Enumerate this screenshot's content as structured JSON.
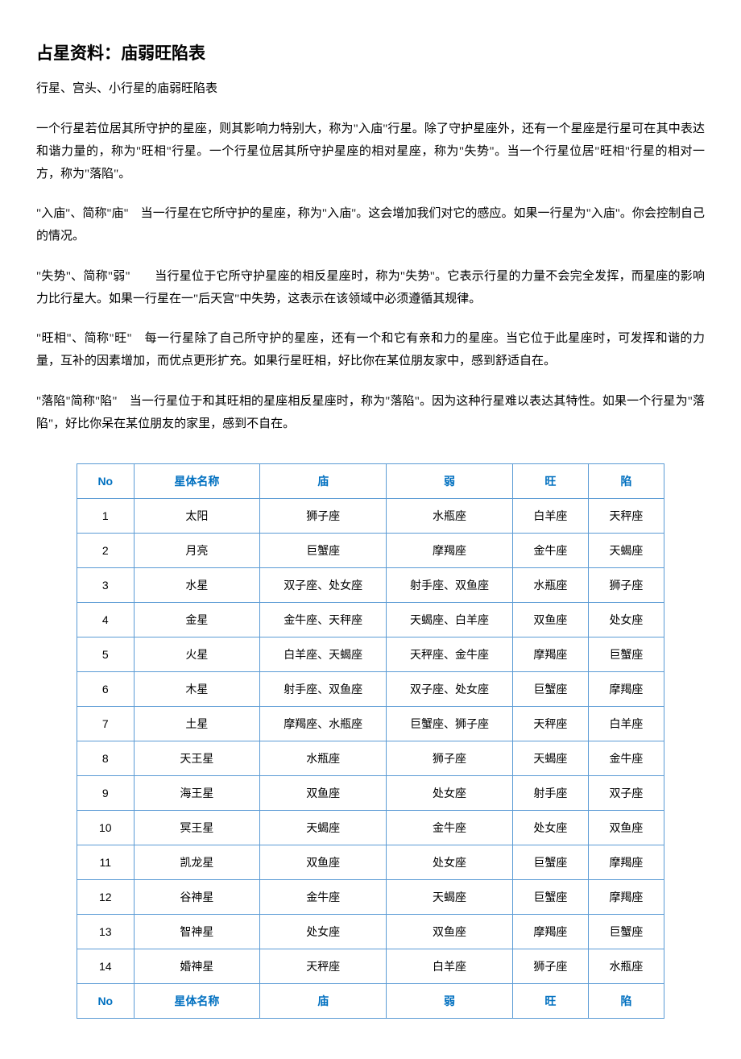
{
  "title": "占星资料：庙弱旺陷表",
  "subtitle": "行星、宫头、小行星的庙弱旺陷表",
  "paragraphs": [
    "一个行星若位居其所守护的星座，则其影响力特别大，称为\"入庙\"行星。除了守护星座外，还有一个星座是行星可在其中表达和谐力量的，称为\"旺相\"行星。一个行星位居其所守护星座的相对星座，称为\"失势\"。当一个行星位居\"旺相\"行星的相对一方，称为\"落陷\"。",
    "\"入庙\"、简称\"庙\"　当一行星在它所守护的星座，称为\"入庙\"。这会增加我们对它的感应。如果一行星为\"入庙\"。你会控制自己的情况。",
    "\"失势\"、简称\"弱\"　　当行星位于它所守护星座的相反星座时，称为\"失势\"。它表示行星的力量不会完全发挥，而星座的影响力比行星大。如果一行星在一\"后天宫\"中失势，这表示在该领域中必须遵循其规律。",
    "\"旺相\"、简称\"旺\"　每一行星除了自己所守护的星座，还有一个和它有亲和力的星座。当它位于此星座时，可发挥和谐的力量，互补的因素增加，而优点更形扩充。如果行星旺相，好比你在某位朋友家中，感到舒适自在。",
    "\"落陷\"简称\"陷\"　当一行星位于和其旺相的星座相反星座时，称为\"落陷\"。因为这种行星难以表达其特性。如果一个行星为\"落陷\"，好比你呆在某位朋友的家里，感到不自在。"
  ],
  "table": {
    "headers": {
      "no": "No",
      "name": "星体名称",
      "miao": "庙",
      "ruo": "弱",
      "wang": "旺",
      "xian": "陷"
    },
    "rows": [
      {
        "no": "1",
        "name": "太阳",
        "miao": "狮子座",
        "ruo": "水瓶座",
        "wang": "白羊座",
        "xian": "天秤座"
      },
      {
        "no": "2",
        "name": "月亮",
        "miao": "巨蟹座",
        "ruo": "摩羯座",
        "wang": "金牛座",
        "xian": "天蝎座"
      },
      {
        "no": "3",
        "name": "水星",
        "miao": "双子座、处女座",
        "ruo": "射手座、双鱼座",
        "wang": "水瓶座",
        "xian": "狮子座"
      },
      {
        "no": "4",
        "name": "金星",
        "miao": "金牛座、天秤座",
        "ruo": "天蝎座、白羊座",
        "wang": "双鱼座",
        "xian": "处女座"
      },
      {
        "no": "5",
        "name": "火星",
        "miao": "白羊座、天蝎座",
        "ruo": "天秤座、金牛座",
        "wang": "摩羯座",
        "xian": "巨蟹座"
      },
      {
        "no": "6",
        "name": "木星",
        "miao": "射手座、双鱼座",
        "ruo": "双子座、处女座",
        "wang": "巨蟹座",
        "xian": "摩羯座"
      },
      {
        "no": "7",
        "name": "土星",
        "miao": "摩羯座、水瓶座",
        "ruo": "巨蟹座、狮子座",
        "wang": "天秤座",
        "xian": "白羊座"
      },
      {
        "no": "8",
        "name": "天王星",
        "miao": "水瓶座",
        "ruo": "狮子座",
        "wang": "天蝎座",
        "xian": "金牛座"
      },
      {
        "no": "9",
        "name": "海王星",
        "miao": "双鱼座",
        "ruo": "处女座",
        "wang": "射手座",
        "xian": "双子座"
      },
      {
        "no": "10",
        "name": "冥王星",
        "miao": "天蝎座",
        "ruo": "金牛座",
        "wang": "处女座",
        "xian": "双鱼座"
      },
      {
        "no": "11",
        "name": "凯龙星",
        "miao": "双鱼座",
        "ruo": "处女座",
        "wang": "巨蟹座",
        "xian": "摩羯座"
      },
      {
        "no": "12",
        "name": "谷神星",
        "miao": "金牛座",
        "ruo": "天蝎座",
        "wang": "巨蟹座",
        "xian": "摩羯座"
      },
      {
        "no": "13",
        "name": "智神星",
        "miao": "处女座",
        "ruo": "双鱼座",
        "wang": "摩羯座",
        "xian": "巨蟹座"
      },
      {
        "no": "14",
        "name": "婚神星",
        "miao": "天秤座",
        "ruo": "白羊座",
        "wang": "狮子座",
        "xian": "水瓶座"
      }
    ]
  },
  "styling": {
    "header_text_color": "#0070c0",
    "border_color": "#5b9bd5",
    "body_text_color": "#000000",
    "background_color": "#ffffff",
    "title_fontsize": 21,
    "body_fontsize": 15,
    "table_fontsize": 14
  }
}
